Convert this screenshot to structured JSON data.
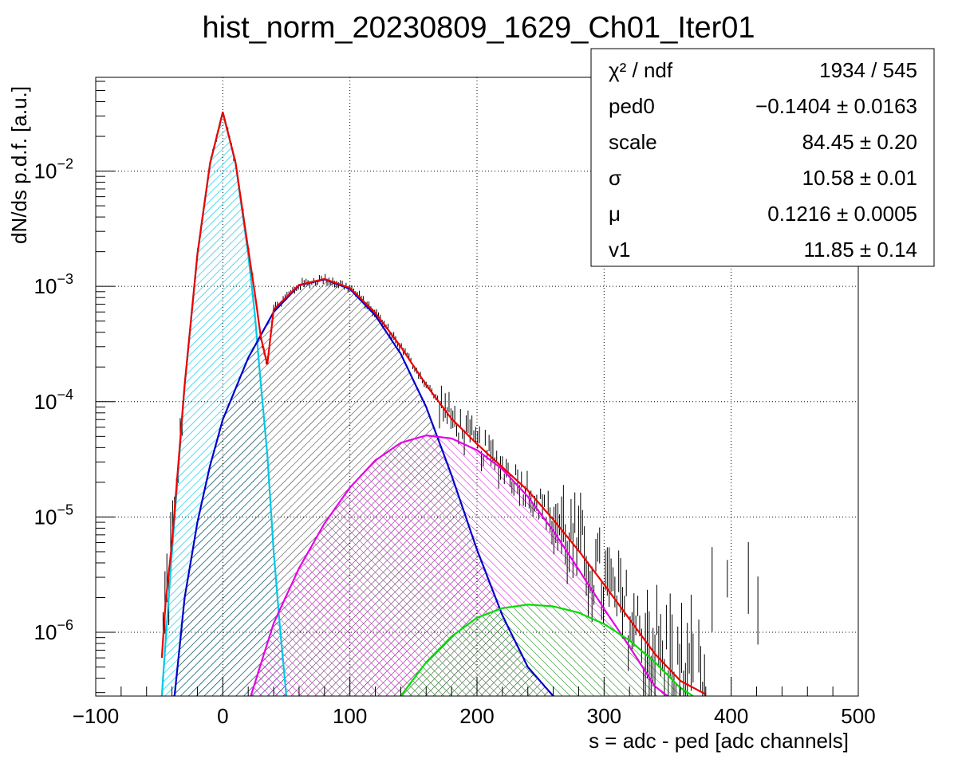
{
  "chart_data": {
    "type": "line",
    "title": "hist_norm_20230809_1629_Ch01_Iter01",
    "xlabel": "s = adc - ped [adc channels]",
    "ylabel": "dN/ds p.d.f. [a.u.]",
    "xlim": [
      -100,
      500
    ],
    "ylim": [
      2.8e-07,
      0.065
    ],
    "yscale": "log",
    "grid": true,
    "x_ticks": [
      {
        "value": -100,
        "label": "−100"
      },
      {
        "value": 0,
        "label": "0"
      },
      {
        "value": 100,
        "label": "100"
      },
      {
        "value": 200,
        "label": "200"
      },
      {
        "value": 300,
        "label": "300"
      },
      {
        "value": 400,
        "label": "400"
      },
      {
        "value": 500,
        "label": "500"
      }
    ],
    "y_ticks": [
      {
        "value": 1e-06,
        "base": "10",
        "exp": "−6"
      },
      {
        "value": 1e-05,
        "base": "10",
        "exp": "−5"
      },
      {
        "value": 0.0001,
        "base": "10",
        "exp": "−4"
      },
      {
        "value": 0.001,
        "base": "10",
        "exp": "−3"
      },
      {
        "value": 0.01,
        "base": "10",
        "exp": "−2"
      }
    ],
    "stats_box": {
      "position": "top-right",
      "rows": [
        {
          "name": "χ² / ndf",
          "value": "1934 / 545"
        },
        {
          "name": "ped0",
          "value": "−0.1404 ± 0.0163"
        },
        {
          "name": "scale",
          "value": "84.45 ± 0.20"
        },
        {
          "name": "σ",
          "value": "10.58 ± 0.01"
        },
        {
          "name": "μ",
          "value": "0.1216 ± 0.0005"
        },
        {
          "name": "v1",
          "value": "11.85 ± 0.14"
        }
      ]
    },
    "series": [
      {
        "color": "#00c8e6",
        "hatch": "cyan",
        "x": [
          -48,
          -40,
          -30,
          -20,
          -10,
          0,
          10,
          20,
          25,
          30,
          35,
          40,
          45,
          50
        ],
        "y": [
          2.8e-07,
          5e-06,
          0.00014,
          0.0019,
          0.0117,
          0.0325,
          0.0117,
          0.0019,
          0.0006,
          0.00014,
          3.5e-05,
          5e-06,
          1.1e-06,
          2.8e-07
        ]
      },
      {
        "color": "#0000cc",
        "hatch": "black",
        "x": [
          -38,
          -30,
          -20,
          -10,
          0,
          20,
          40,
          60,
          80,
          100,
          120,
          140,
          160,
          180,
          200,
          220,
          240,
          260
        ],
        "y": [
          2.8e-07,
          2e-06,
          9e-06,
          2.8e-05,
          7e-05,
          0.00024,
          0.0006,
          0.00102,
          0.00115,
          0.00095,
          0.00056,
          0.00026,
          9e-05,
          2.3e-05,
          5.2e-06,
          1.4e-06,
          5e-07,
          2.8e-07
        ]
      },
      {
        "color": "#e600e6",
        "hatch": "magenta",
        "x": [
          22,
          40,
          60,
          80,
          100,
          120,
          140,
          160,
          180,
          200,
          220,
          240,
          260,
          280,
          300,
          320,
          340,
          350
        ],
        "y": [
          2.8e-07,
          1.2e-06,
          3.6e-06,
          8.8e-06,
          1.8e-05,
          3.1e-05,
          4.4e-05,
          5.1e-05,
          4.8e-05,
          3.8e-05,
          2.6e-05,
          1.5e-05,
          7.6e-06,
          3.5e-06,
          1.6e-06,
          7.5e-07,
          3.4e-07,
          2.8e-07
        ]
      },
      {
        "color": "#00dd00",
        "hatch": "green",
        "x": [
          140,
          160,
          180,
          200,
          220,
          240,
          260,
          280,
          300,
          320,
          340,
          360,
          370
        ],
        "y": [
          2.8e-07,
          5.5e-07,
          9.2e-07,
          1.34e-06,
          1.62e-06,
          1.74e-06,
          1.68e-06,
          1.48e-06,
          1.18e-06,
          8.5e-07,
          5.5e-07,
          3.3e-07,
          2.8e-07
        ]
      },
      {
        "color": "#ee0000",
        "hatch": "none",
        "x": [
          -48,
          -45,
          -40,
          -30,
          -20,
          -10,
          0,
          10,
          20,
          25,
          30,
          35,
          40,
          60,
          80,
          100,
          120,
          140,
          160,
          180,
          200,
          220,
          240,
          260,
          280,
          300,
          320,
          340,
          360,
          380
        ],
        "y": [
          6e-07,
          1.8e-06,
          6e-06,
          0.00014,
          0.0019,
          0.0117,
          0.0325,
          0.0119,
          0.0021,
          0.0009,
          0.00036,
          0.00021,
          0.00063,
          0.00103,
          0.00116,
          0.00097,
          0.00059,
          0.0003,
          0.00014,
          7.1e-05,
          4.3e-05,
          2.7e-05,
          1.7e-05,
          9.5e-06,
          5.1e-06,
          2.6e-06,
          1.3e-06,
          6.5e-07,
          3.8e-07,
          2.9e-07
        ]
      }
    ]
  }
}
